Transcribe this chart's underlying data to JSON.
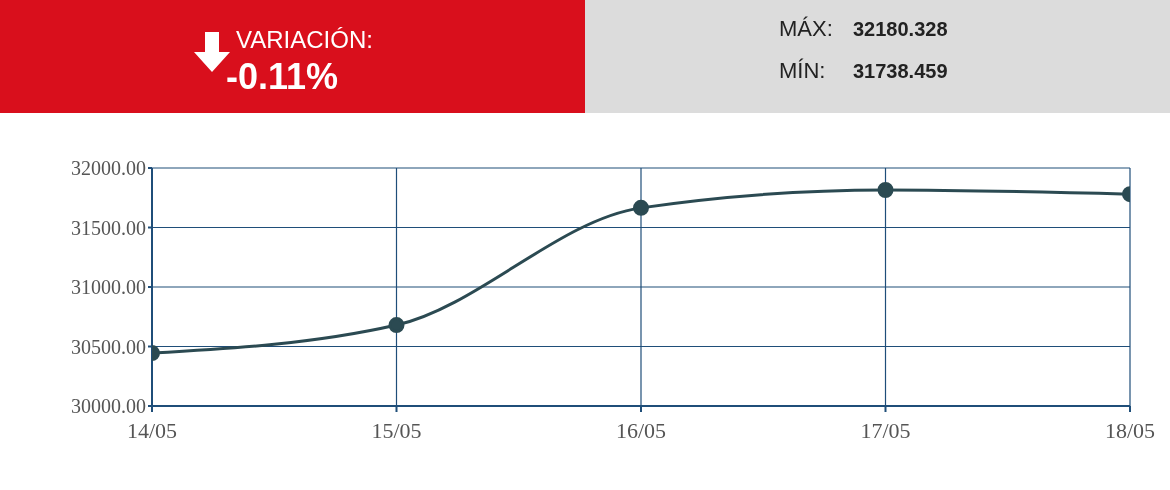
{
  "chart_data": {
    "type": "line",
    "categories": [
      "14/05",
      "15/05",
      "16/05",
      "17/05",
      "18/05"
    ],
    "series": [
      {
        "color": "#2b4a52",
        "values": [
          30445,
          30680,
          31665,
          31815,
          31780
        ]
      }
    ],
    "ylim": [
      30000,
      32000
    ],
    "yticks": [
      {
        "value": 30000,
        "label": "30000.00"
      },
      {
        "value": 30500,
        "label": "30500.00"
      },
      {
        "value": 31000,
        "label": "31000.00"
      },
      {
        "value": 31500,
        "label": "31500.00"
      },
      {
        "value": 32000,
        "label": "32000.00"
      }
    ],
    "grid": true,
    "marker": "circle",
    "line_style": "solid",
    "annotations": [
      "VARIACIÓN:",
      "-0.11%",
      "MÁX:",
      "32180.328",
      "MÍN:",
      "31738.459"
    ]
  }
}
